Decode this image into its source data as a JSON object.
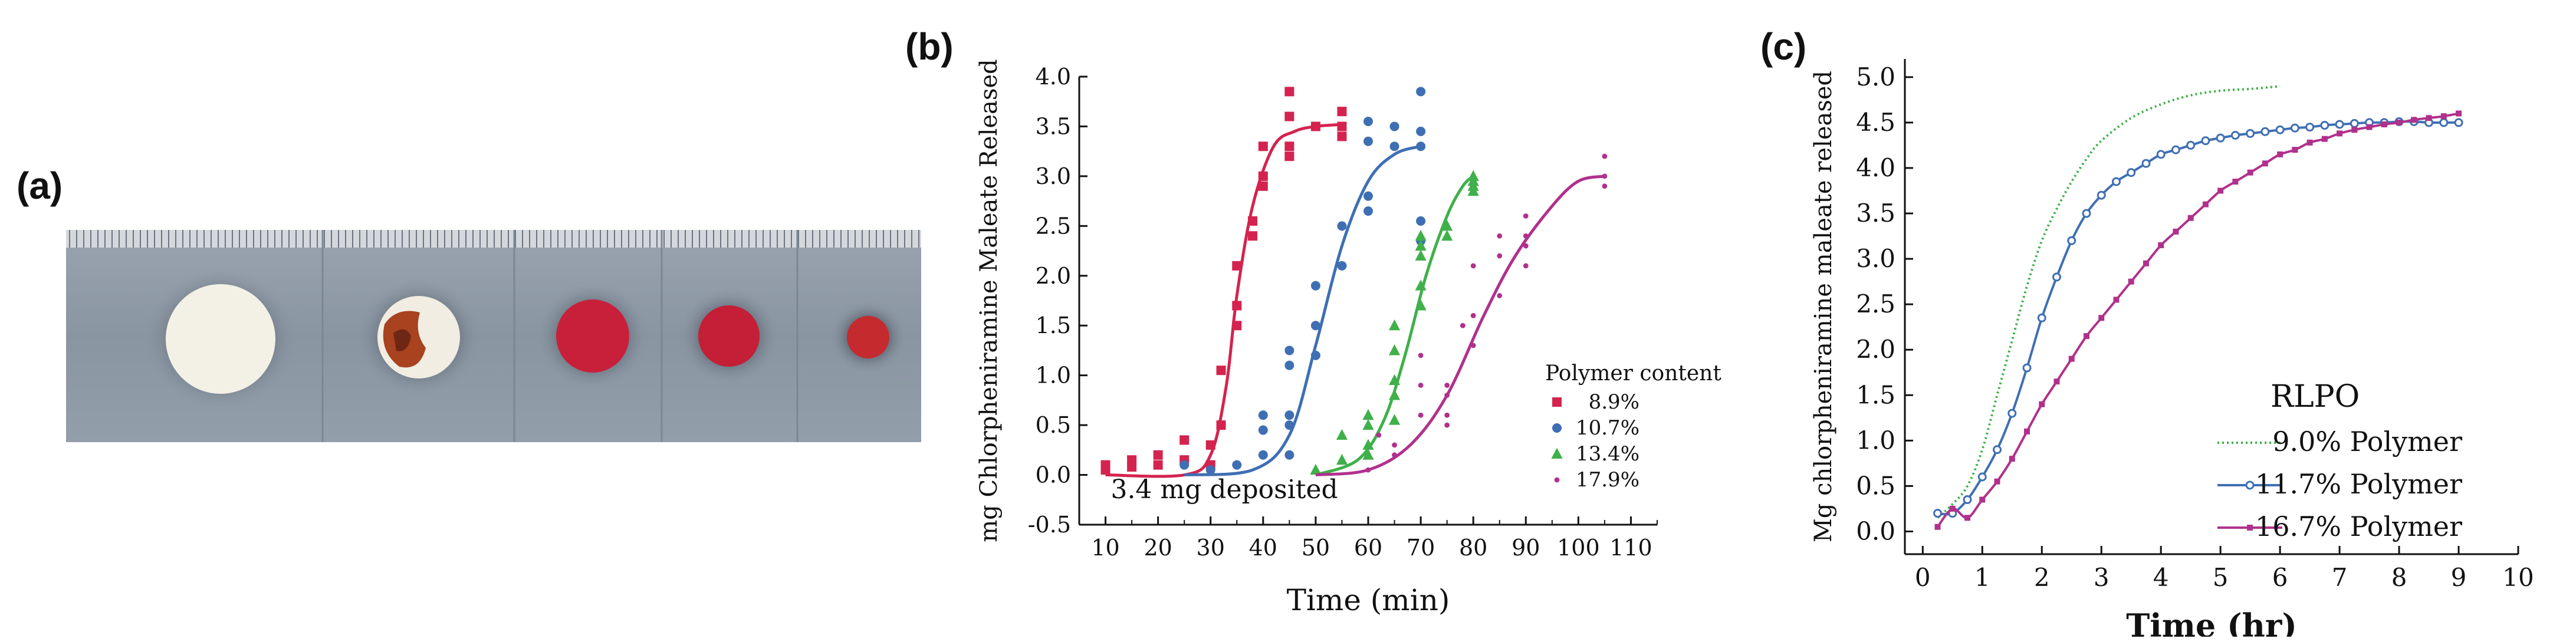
{
  "figure": {
    "panel_a_label": "(a)",
    "panel_b_label": "(b)",
    "panel_c_label": "(c)"
  },
  "photo": {
    "description_colors": {
      "strip": "#8e99a6",
      "ruler": "#d9dde0",
      "white_dot": "#f3f1e6",
      "rust": "#a9421f",
      "red_dot": "#c8203a"
    }
  },
  "chart_data": [
    {
      "id": "b",
      "type": "scatter",
      "title": "",
      "xlabel": "Time (min)",
      "ylabel": "mg Chlorpheniramine Maleate Released",
      "xlim": [
        5,
        115
      ],
      "ylim": [
        -0.5,
        4.0
      ],
      "xticks": [
        10,
        20,
        30,
        40,
        50,
        60,
        70,
        80,
        90,
        100,
        110
      ],
      "yticks": [
        -0.5,
        0.0,
        0.5,
        1.0,
        1.5,
        2.0,
        2.5,
        3.0,
        3.5,
        4.0
      ],
      "annotation": "3.4 mg deposited",
      "legend_title": "Polymer content",
      "legend_position": "right",
      "series": [
        {
          "name": "8.9%",
          "marker": "square",
          "color": "#d4234e",
          "points": [
            [
              10,
              0.1
            ],
            [
              10,
              0.05
            ],
            [
              15,
              0.15
            ],
            [
              15,
              0.08
            ],
            [
              20,
              0.2
            ],
            [
              20,
              0.1
            ],
            [
              25,
              0.35
            ],
            [
              25,
              0.15
            ],
            [
              30,
              0.3
            ],
            [
              30,
              0.1
            ],
            [
              32,
              1.05
            ],
            [
              32,
              0.5
            ],
            [
              35,
              2.1
            ],
            [
              35,
              1.7
            ],
            [
              35,
              1.5
            ],
            [
              38,
              2.4
            ],
            [
              38,
              2.55
            ],
            [
              40,
              2.9
            ],
            [
              40,
              3.3
            ],
            [
              40,
              3.0
            ],
            [
              45,
              3.85
            ],
            [
              45,
              3.6
            ],
            [
              45,
              3.3
            ],
            [
              45,
              3.2
            ],
            [
              50,
              3.5
            ],
            [
              55,
              3.65
            ],
            [
              55,
              3.5
            ],
            [
              55,
              3.4
            ]
          ],
          "fit": [
            [
              10,
              0.0
            ],
            [
              25,
              0.0
            ],
            [
              30,
              0.2
            ],
            [
              33,
              0.9
            ],
            [
              35,
              1.8
            ],
            [
              38,
              2.7
            ],
            [
              42,
              3.3
            ],
            [
              46,
              3.45
            ],
            [
              50,
              3.5
            ],
            [
              55,
              3.52
            ]
          ]
        },
        {
          "name": "10.7%",
          "marker": "circle",
          "color": "#3f6fb3",
          "points": [
            [
              25,
              0.1
            ],
            [
              30,
              0.05
            ],
            [
              35,
              0.1
            ],
            [
              40,
              0.2
            ],
            [
              40,
              0.6
            ],
            [
              40,
              0.45
            ],
            [
              45,
              0.6
            ],
            [
              45,
              0.2
            ],
            [
              45,
              0.5
            ],
            [
              45,
              1.25
            ],
            [
              45,
              1.1
            ],
            [
              50,
              1.9
            ],
            [
              50,
              1.5
            ],
            [
              50,
              1.2
            ],
            [
              55,
              2.5
            ],
            [
              55,
              2.1
            ],
            [
              60,
              2.8
            ],
            [
              60,
              2.65
            ],
            [
              60,
              3.35
            ],
            [
              60,
              3.55
            ],
            [
              65,
              3.5
            ],
            [
              65,
              3.3
            ],
            [
              70,
              3.85
            ],
            [
              70,
              3.45
            ],
            [
              70,
              3.3
            ],
            [
              70,
              2.55
            ],
            [
              70,
              2.35
            ]
          ],
          "fit": [
            [
              25,
              0.0
            ],
            [
              38,
              0.05
            ],
            [
              45,
              0.4
            ],
            [
              50,
              1.3
            ],
            [
              55,
              2.3
            ],
            [
              60,
              2.95
            ],
            [
              65,
              3.22
            ],
            [
              70,
              3.3
            ]
          ]
        },
        {
          "name": "13.4%",
          "marker": "triangle",
          "color": "#3fb04a",
          "points": [
            [
              50,
              0.05
            ],
            [
              55,
              0.15
            ],
            [
              55,
              0.4
            ],
            [
              60,
              0.6
            ],
            [
              60,
              0.5
            ],
            [
              60,
              0.3
            ],
            [
              60,
              0.2
            ],
            [
              65,
              0.8
            ],
            [
              65,
              0.55
            ],
            [
              65,
              0.95
            ],
            [
              65,
              1.25
            ],
            [
              65,
              1.5
            ],
            [
              70,
              1.7
            ],
            [
              70,
              1.9
            ],
            [
              70,
              2.2
            ],
            [
              70,
              2.3
            ],
            [
              70,
              2.4
            ],
            [
              75,
              2.5
            ],
            [
              75,
              2.4
            ],
            [
              80,
              2.85
            ],
            [
              80,
              2.9
            ],
            [
              80,
              3.0
            ],
            [
              80,
              2.95
            ]
          ],
          "fit": [
            [
              50,
              0.0
            ],
            [
              58,
              0.15
            ],
            [
              63,
              0.55
            ],
            [
              67,
              1.2
            ],
            [
              71,
              2.0
            ],
            [
              75,
              2.6
            ],
            [
              78,
              2.9
            ],
            [
              80,
              3.0
            ]
          ]
        },
        {
          "name": "17.9%",
          "marker": "plus",
          "color": "#b0318c",
          "points": [
            [
              60,
              0.05
            ],
            [
              62,
              0.4
            ],
            [
              65,
              0.3
            ],
            [
              65,
              0.2
            ],
            [
              70,
              0.6
            ],
            [
              70,
              0.9
            ],
            [
              70,
              1.2
            ],
            [
              75,
              0.8
            ],
            [
              75,
              0.6
            ],
            [
              75,
              0.5
            ],
            [
              75,
              0.9
            ],
            [
              78,
              1.5
            ],
            [
              80,
              2.1
            ],
            [
              80,
              1.6
            ],
            [
              80,
              1.3
            ],
            [
              85,
              2.2
            ],
            [
              85,
              1.8
            ],
            [
              85,
              2.4
            ],
            [
              90,
              2.4
            ],
            [
              90,
              2.6
            ],
            [
              90,
              2.1
            ],
            [
              90,
              2.3
            ],
            [
              105,
              3.2
            ],
            [
              105,
              3.0
            ],
            [
              105,
              2.9
            ]
          ],
          "fit": [
            [
              50,
              0.0
            ],
            [
              60,
              0.05
            ],
            [
              68,
              0.3
            ],
            [
              75,
              0.8
            ],
            [
              82,
              1.6
            ],
            [
              88,
              2.2
            ],
            [
              95,
              2.7
            ],
            [
              100,
              2.95
            ],
            [
              105,
              3.0
            ]
          ]
        }
      ]
    },
    {
      "id": "c",
      "type": "line",
      "title": "",
      "xlabel": "Time (hr)",
      "ylabel": "Mg chlorpheniramine maleate released",
      "xlim": [
        -0.3,
        10.0
      ],
      "ylim": [
        -0.25,
        5.2
      ],
      "xticks": [
        0,
        1,
        2,
        3,
        4,
        5,
        6,
        7,
        8,
        9,
        10
      ],
      "yticks": [
        0.0,
        0.5,
        1.0,
        1.5,
        2.0,
        2.5,
        3.0,
        3.5,
        4.0,
        4.5,
        5.0
      ],
      "legend_title": "RLPO",
      "legend_position": "bottom-right",
      "series": [
        {
          "name": "9.0% Polymer",
          "style": "dotted",
          "color": "#3fb04a",
          "points": [
            [
              0.25,
              0.15
            ],
            [
              0.5,
              0.3
            ],
            [
              0.75,
              0.5
            ],
            [
              1.0,
              0.9
            ],
            [
              1.25,
              1.5
            ],
            [
              1.5,
              2.1
            ],
            [
              1.75,
              2.7
            ],
            [
              2.0,
              3.2
            ],
            [
              2.25,
              3.55
            ],
            [
              2.5,
              3.85
            ],
            [
              2.75,
              4.1
            ],
            [
              3.0,
              4.3
            ],
            [
              3.5,
              4.55
            ],
            [
              4.0,
              4.7
            ],
            [
              4.5,
              4.8
            ],
            [
              5.0,
              4.85
            ],
            [
              5.5,
              4.87
            ],
            [
              6.0,
              4.9
            ]
          ]
        },
        {
          "name": "11.7% Polymer",
          "style": "circle",
          "color": "#3f6fb3",
          "points": [
            [
              0.25,
              0.2
            ],
            [
              0.5,
              0.2
            ],
            [
              0.75,
              0.35
            ],
            [
              1.0,
              0.6
            ],
            [
              1.25,
              0.9
            ],
            [
              1.5,
              1.3
            ],
            [
              1.75,
              1.8
            ],
            [
              2.0,
              2.35
            ],
            [
              2.25,
              2.8
            ],
            [
              2.5,
              3.2
            ],
            [
              2.75,
              3.5
            ],
            [
              3.0,
              3.7
            ],
            [
              3.25,
              3.85
            ],
            [
              3.5,
              3.95
            ],
            [
              3.75,
              4.05
            ],
            [
              4.0,
              4.15
            ],
            [
              4.25,
              4.2
            ],
            [
              4.5,
              4.25
            ],
            [
              4.75,
              4.3
            ],
            [
              5.0,
              4.33
            ],
            [
              5.25,
              4.36
            ],
            [
              5.5,
              4.38
            ],
            [
              5.75,
              4.4
            ],
            [
              6.0,
              4.42
            ],
            [
              6.25,
              4.44
            ],
            [
              6.5,
              4.45
            ],
            [
              6.75,
              4.47
            ],
            [
              7.0,
              4.48
            ],
            [
              7.25,
              4.49
            ],
            [
              7.5,
              4.5
            ],
            [
              7.75,
              4.5
            ],
            [
              8.0,
              4.51
            ],
            [
              8.25,
              4.51
            ],
            [
              8.5,
              4.5
            ],
            [
              8.75,
              4.5
            ],
            [
              9.0,
              4.5
            ]
          ]
        },
        {
          "name": "16.7% Polymer",
          "style": "square",
          "color": "#b0318c",
          "points": [
            [
              0.25,
              0.05
            ],
            [
              0.5,
              0.25
            ],
            [
              0.75,
              0.15
            ],
            [
              1.0,
              0.35
            ],
            [
              1.25,
              0.55
            ],
            [
              1.5,
              0.8
            ],
            [
              1.75,
              1.1
            ],
            [
              2.0,
              1.4
            ],
            [
              2.25,
              1.65
            ],
            [
              2.5,
              1.9
            ],
            [
              2.75,
              2.15
            ],
            [
              3.0,
              2.35
            ],
            [
              3.25,
              2.55
            ],
            [
              3.5,
              2.75
            ],
            [
              3.75,
              2.95
            ],
            [
              4.0,
              3.15
            ],
            [
              4.25,
              3.3
            ],
            [
              4.5,
              3.45
            ],
            [
              4.75,
              3.6
            ],
            [
              5.0,
              3.75
            ],
            [
              5.25,
              3.85
            ],
            [
              5.5,
              3.95
            ],
            [
              5.75,
              4.05
            ],
            [
              6.0,
              4.15
            ],
            [
              6.25,
              4.2
            ],
            [
              6.5,
              4.28
            ],
            [
              6.75,
              4.32
            ],
            [
              7.0,
              4.38
            ],
            [
              7.25,
              4.42
            ],
            [
              7.5,
              4.45
            ],
            [
              7.75,
              4.48
            ],
            [
              8.0,
              4.5
            ],
            [
              8.25,
              4.53
            ],
            [
              8.5,
              4.55
            ],
            [
              8.75,
              4.57
            ],
            [
              9.0,
              4.6
            ]
          ]
        }
      ]
    }
  ]
}
